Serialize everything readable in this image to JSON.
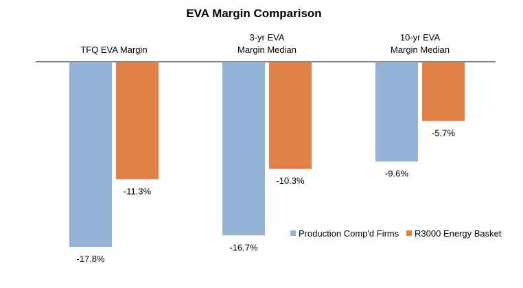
{
  "chart_data": {
    "type": "bar",
    "title": "EVA Margin Comparison",
    "categories": [
      [
        "TFQ EVA Margin"
      ],
      [
        "3-yr EVA",
        "Margin Median"
      ],
      [
        "10-yr EVA",
        "Margin Median"
      ]
    ],
    "series": [
      {
        "name": "Production Comp'd Firms",
        "color": "#95B3D7",
        "values": [
          -17.8,
          -16.7,
          -9.6
        ],
        "labels": [
          "-17.8%",
          "-16.7%",
          "-9.6%"
        ]
      },
      {
        "name": "R3000 Energy Basket",
        "color": "#E0814A",
        "values": [
          -11.3,
          -10.3,
          -5.7
        ],
        "labels": [
          "-11.3%",
          "-10.3%",
          "-5.7%"
        ]
      }
    ],
    "ylim": [
      -20,
      0
    ],
    "grid": false,
    "legend_position": "bottom-right",
    "xlabel": "",
    "ylabel": ""
  }
}
